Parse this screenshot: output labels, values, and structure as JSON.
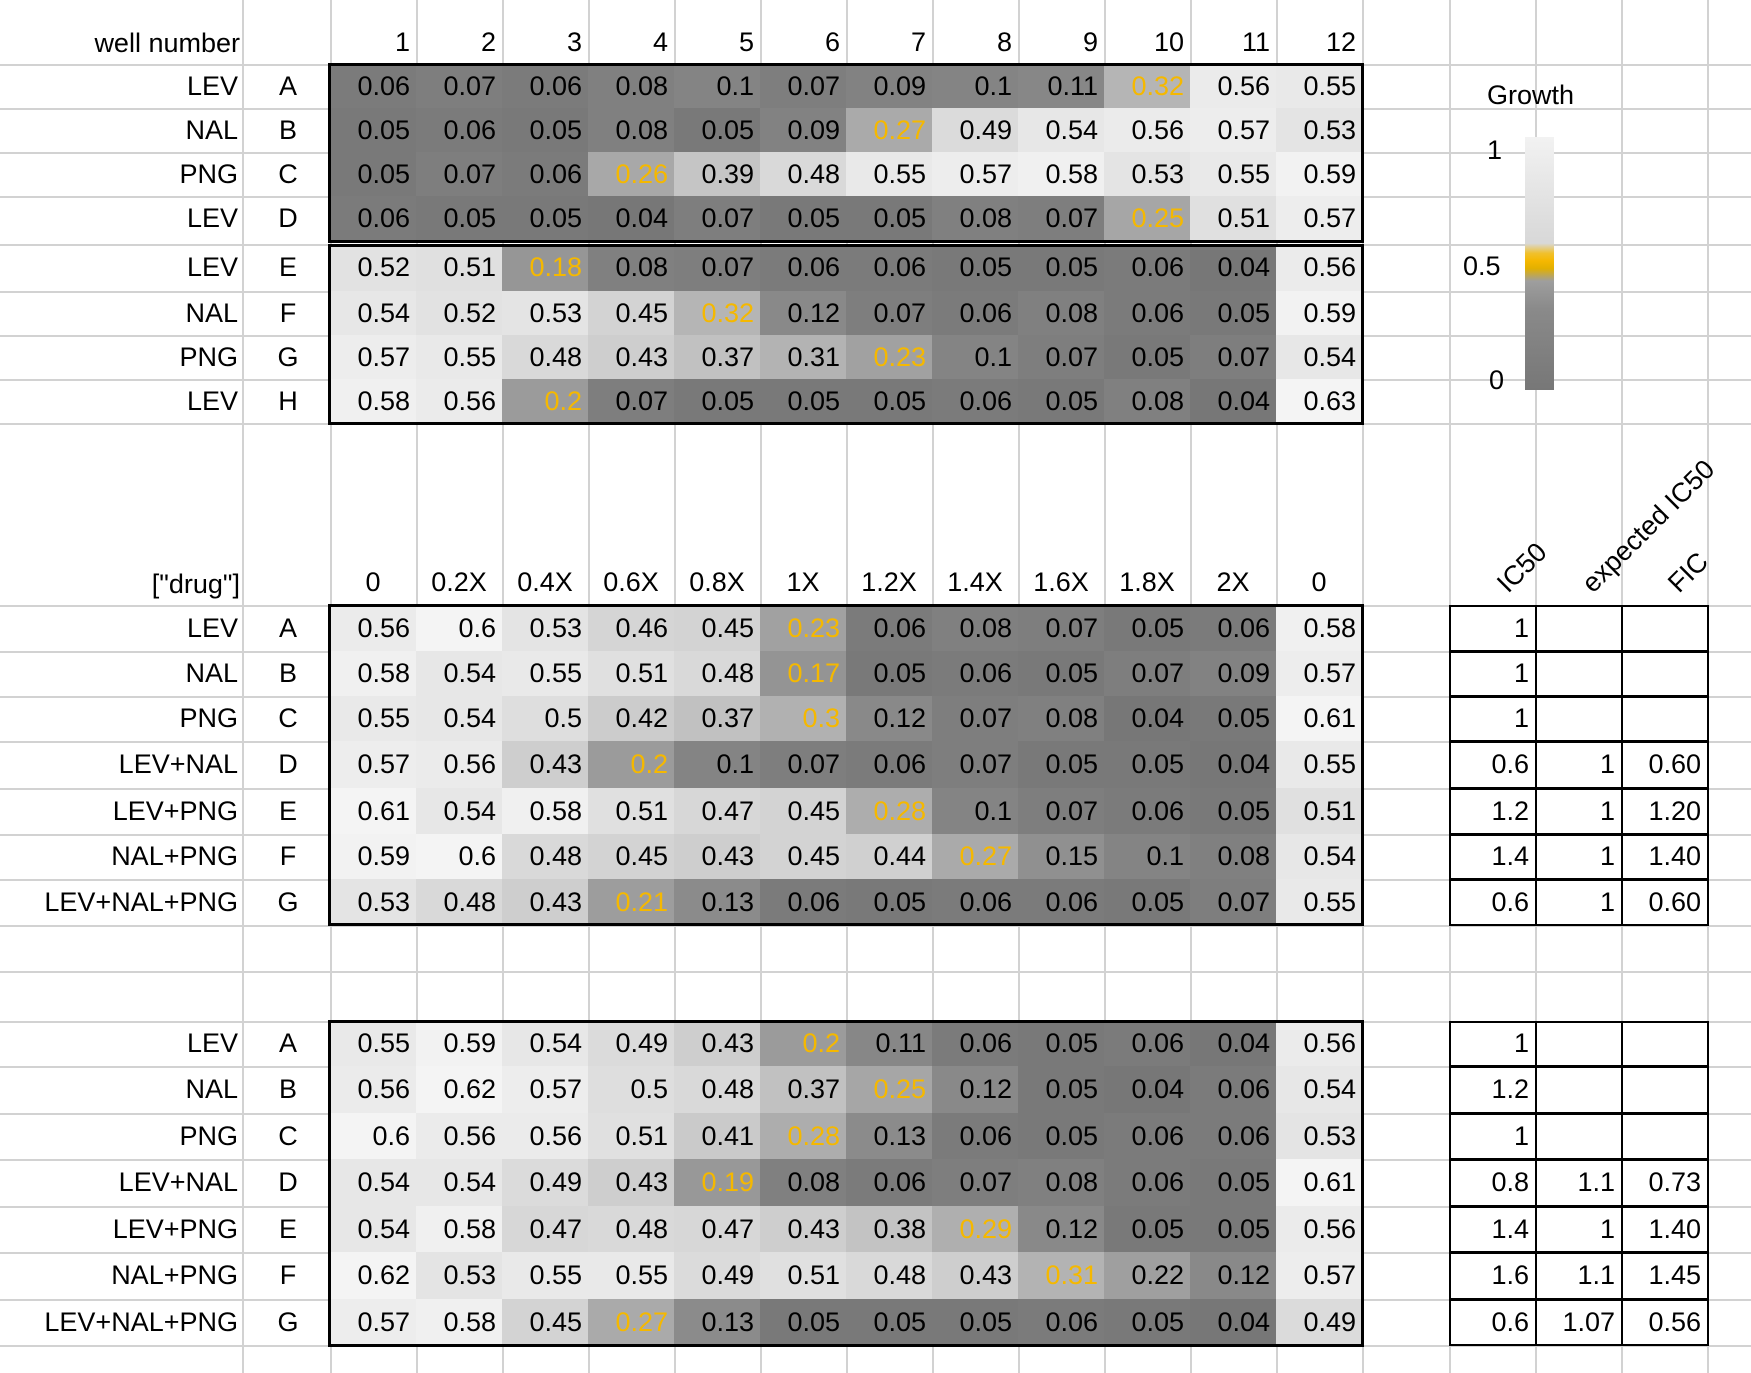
{
  "header": {
    "well_number_label": "well number",
    "well_numbers": [
      "1",
      "2",
      "3",
      "4",
      "5",
      "6",
      "7",
      "8",
      "9",
      "10",
      "11",
      "12"
    ],
    "drug_label": "[\"drug\"]",
    "concentrations": [
      "0",
      "0.2X",
      "0.4X",
      "0.6X",
      "0.8X",
      "1X",
      "1.2X",
      "1.4X",
      "1.6X",
      "1.8X",
      "2X",
      "0"
    ]
  },
  "legend": {
    "title": "Growth",
    "ticks": [
      "1",
      "0.5",
      "0"
    ],
    "colors": {
      "high": "#f2f2f2",
      "mid": "#f5b800",
      "low": "#777777"
    }
  },
  "side_headers": [
    "IC50",
    "expected IC50",
    "FIC"
  ],
  "plate1": {
    "top": {
      "rows": [
        {
          "drug": "LEV",
          "row": "A",
          "values": [
            "0.06",
            "0.07",
            "0.06",
            "0.08",
            "0.1",
            "0.07",
            "0.09",
            "0.1",
            "0.11",
            "0.32",
            "0.56",
            "0.55"
          ],
          "highlight": 9
        },
        {
          "drug": "NAL",
          "row": "B",
          "values": [
            "0.05",
            "0.06",
            "0.05",
            "0.08",
            "0.05",
            "0.09",
            "0.27",
            "0.49",
            "0.54",
            "0.56",
            "0.57",
            "0.53"
          ],
          "highlight": 6
        },
        {
          "drug": "PNG",
          "row": "C",
          "values": [
            "0.05",
            "0.07",
            "0.06",
            "0.26",
            "0.39",
            "0.48",
            "0.55",
            "0.57",
            "0.58",
            "0.53",
            "0.55",
            "0.59"
          ],
          "highlight": 3
        },
        {
          "drug": "LEV",
          "row": "D",
          "values": [
            "0.06",
            "0.05",
            "0.05",
            "0.04",
            "0.07",
            "0.05",
            "0.05",
            "0.08",
            "0.07",
            "0.25",
            "0.51",
            "0.57"
          ],
          "highlight": 9
        }
      ]
    },
    "bottom": {
      "rows": [
        {
          "drug": "LEV",
          "row": "E",
          "values": [
            "0.52",
            "0.51",
            "0.18",
            "0.08",
            "0.07",
            "0.06",
            "0.06",
            "0.05",
            "0.05",
            "0.06",
            "0.04",
            "0.56"
          ],
          "highlight": 2
        },
        {
          "drug": "NAL",
          "row": "F",
          "values": [
            "0.54",
            "0.52",
            "0.53",
            "0.45",
            "0.32",
            "0.12",
            "0.07",
            "0.06",
            "0.08",
            "0.06",
            "0.05",
            "0.59"
          ],
          "highlight": 4
        },
        {
          "drug": "PNG",
          "row": "G",
          "values": [
            "0.57",
            "0.55",
            "0.48",
            "0.43",
            "0.37",
            "0.31",
            "0.23",
            "0.1",
            "0.07",
            "0.05",
            "0.07",
            "0.54"
          ],
          "highlight": 6
        },
        {
          "drug": "LEV",
          "row": "H",
          "values": [
            "0.58",
            "0.56",
            "0.2",
            "0.07",
            "0.05",
            "0.05",
            "0.05",
            "0.06",
            "0.05",
            "0.08",
            "0.04",
            "0.63"
          ],
          "highlight": 2
        }
      ]
    }
  },
  "plate2": {
    "rows": [
      {
        "drug": "LEV",
        "row": "A",
        "values": [
          "0.56",
          "0.6",
          "0.53",
          "0.46",
          "0.45",
          "0.23",
          "0.06",
          "0.08",
          "0.07",
          "0.05",
          "0.06",
          "0.58"
        ],
        "highlight": 5,
        "ic50": "1",
        "expected": "",
        "fic": ""
      },
      {
        "drug": "NAL",
        "row": "B",
        "values": [
          "0.58",
          "0.54",
          "0.55",
          "0.51",
          "0.48",
          "0.17",
          "0.05",
          "0.06",
          "0.05",
          "0.07",
          "0.09",
          "0.57"
        ],
        "highlight": 5,
        "ic50": "1",
        "expected": "",
        "fic": ""
      },
      {
        "drug": "PNG",
        "row": "C",
        "values": [
          "0.55",
          "0.54",
          "0.5",
          "0.42",
          "0.37",
          "0.3",
          "0.12",
          "0.07",
          "0.08",
          "0.04",
          "0.05",
          "0.61"
        ],
        "highlight": 5,
        "ic50": "1",
        "expected": "",
        "fic": ""
      },
      {
        "drug": "LEV+NAL",
        "row": "D",
        "values": [
          "0.57",
          "0.56",
          "0.43",
          "0.2",
          "0.1",
          "0.07",
          "0.06",
          "0.07",
          "0.05",
          "0.05",
          "0.04",
          "0.55"
        ],
        "highlight": 3,
        "ic50": "0.6",
        "expected": "1",
        "fic": "0.60"
      },
      {
        "drug": "LEV+PNG",
        "row": "E",
        "values": [
          "0.61",
          "0.54",
          "0.58",
          "0.51",
          "0.47",
          "0.45",
          "0.28",
          "0.1",
          "0.07",
          "0.06",
          "0.05",
          "0.51"
        ],
        "highlight": 6,
        "ic50": "1.2",
        "expected": "1",
        "fic": "1.20"
      },
      {
        "drug": "NAL+PNG",
        "row": "F",
        "values": [
          "0.59",
          "0.6",
          "0.48",
          "0.45",
          "0.43",
          "0.45",
          "0.44",
          "0.27",
          "0.15",
          "0.1",
          "0.08",
          "0.54"
        ],
        "highlight": 7,
        "ic50": "1.4",
        "expected": "1",
        "fic": "1.40"
      },
      {
        "drug": "LEV+NAL+PNG",
        "row": "G",
        "values": [
          "0.53",
          "0.48",
          "0.43",
          "0.21",
          "0.13",
          "0.06",
          "0.05",
          "0.06",
          "0.06",
          "0.05",
          "0.07",
          "0.55"
        ],
        "highlight": 3,
        "ic50": "0.6",
        "expected": "1",
        "fic": "0.60"
      }
    ]
  },
  "plate3": {
    "rows": [
      {
        "drug": "LEV",
        "row": "A",
        "values": [
          "0.55",
          "0.59",
          "0.54",
          "0.49",
          "0.43",
          "0.2",
          "0.11",
          "0.06",
          "0.05",
          "0.06",
          "0.04",
          "0.56"
        ],
        "highlight": 5,
        "ic50": "1",
        "expected": "",
        "fic": ""
      },
      {
        "drug": "NAL",
        "row": "B",
        "values": [
          "0.56",
          "0.62",
          "0.57",
          "0.5",
          "0.48",
          "0.37",
          "0.25",
          "0.12",
          "0.05",
          "0.04",
          "0.06",
          "0.54"
        ],
        "highlight": 6,
        "ic50": "1.2",
        "expected": "",
        "fic": ""
      },
      {
        "drug": "PNG",
        "row": "C",
        "values": [
          "0.6",
          "0.56",
          "0.56",
          "0.51",
          "0.41",
          "0.28",
          "0.13",
          "0.06",
          "0.05",
          "0.06",
          "0.06",
          "0.53"
        ],
        "highlight": 5,
        "ic50": "1",
        "expected": "",
        "fic": ""
      },
      {
        "drug": "LEV+NAL",
        "row": "D",
        "values": [
          "0.54",
          "0.54",
          "0.49",
          "0.43",
          "0.19",
          "0.08",
          "0.06",
          "0.07",
          "0.08",
          "0.06",
          "0.05",
          "0.61"
        ],
        "highlight": 4,
        "ic50": "0.8",
        "expected": "1.1",
        "fic": "0.73"
      },
      {
        "drug": "LEV+PNG",
        "row": "E",
        "values": [
          "0.54",
          "0.58",
          "0.47",
          "0.48",
          "0.47",
          "0.43",
          "0.38",
          "0.29",
          "0.12",
          "0.05",
          "0.05",
          "0.56"
        ],
        "highlight": 7,
        "ic50": "1.4",
        "expected": "1",
        "fic": "1.40"
      },
      {
        "drug": "NAL+PNG",
        "row": "F",
        "values": [
          "0.62",
          "0.53",
          "0.55",
          "0.55",
          "0.49",
          "0.51",
          "0.48",
          "0.43",
          "0.31",
          "0.22",
          "0.12",
          "0.57"
        ],
        "highlight": 8,
        "ic50": "1.6",
        "expected": "1.1",
        "fic": "1.45"
      },
      {
        "drug": "LEV+NAL+PNG",
        "row": "G",
        "values": [
          "0.57",
          "0.58",
          "0.45",
          "0.27",
          "0.13",
          "0.05",
          "0.05",
          "0.05",
          "0.06",
          "0.05",
          "0.04",
          "0.49"
        ],
        "highlight": 3,
        "ic50": "0.6",
        "expected": "1.07",
        "fic": "0.56"
      }
    ]
  }
}
